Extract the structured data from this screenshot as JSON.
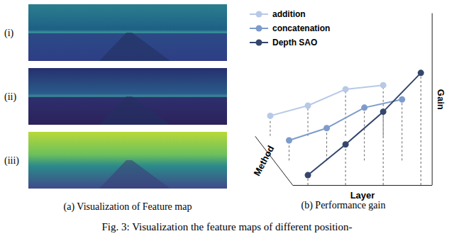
{
  "caption": "Fig. 3: Visualization the feature maps of different position-",
  "panel_a": {
    "title": "(a) Visualization of Feature map",
    "rows": [
      "(i)",
      "(ii)",
      "(iii)"
    ]
  },
  "chart_data": {
    "type": "line",
    "title": "(b) Performance gain",
    "x_label": "Layer",
    "y_label": "Gain",
    "z_label": "Method",
    "categories": [
      null,
      null,
      null,
      null
    ],
    "ylim": [
      0,
      6
    ],
    "yticks": [],
    "tick_labels": false,
    "legend": "top-left",
    "marker": "circle",
    "series": [
      {
        "name": "addition",
        "color": "#b7c9e6",
        "values": [
          1.0,
          1.5,
          2.3,
          2.5
        ]
      },
      {
        "name": "concatenation",
        "color": "#7d9bcb",
        "values": [
          1.0,
          1.6,
          2.6,
          3.0
        ]
      },
      {
        "name": "Depth SAO",
        "color": "#34466b",
        "values": [
          0.5,
          2.0,
          3.6,
          5.5
        ]
      }
    ]
  }
}
